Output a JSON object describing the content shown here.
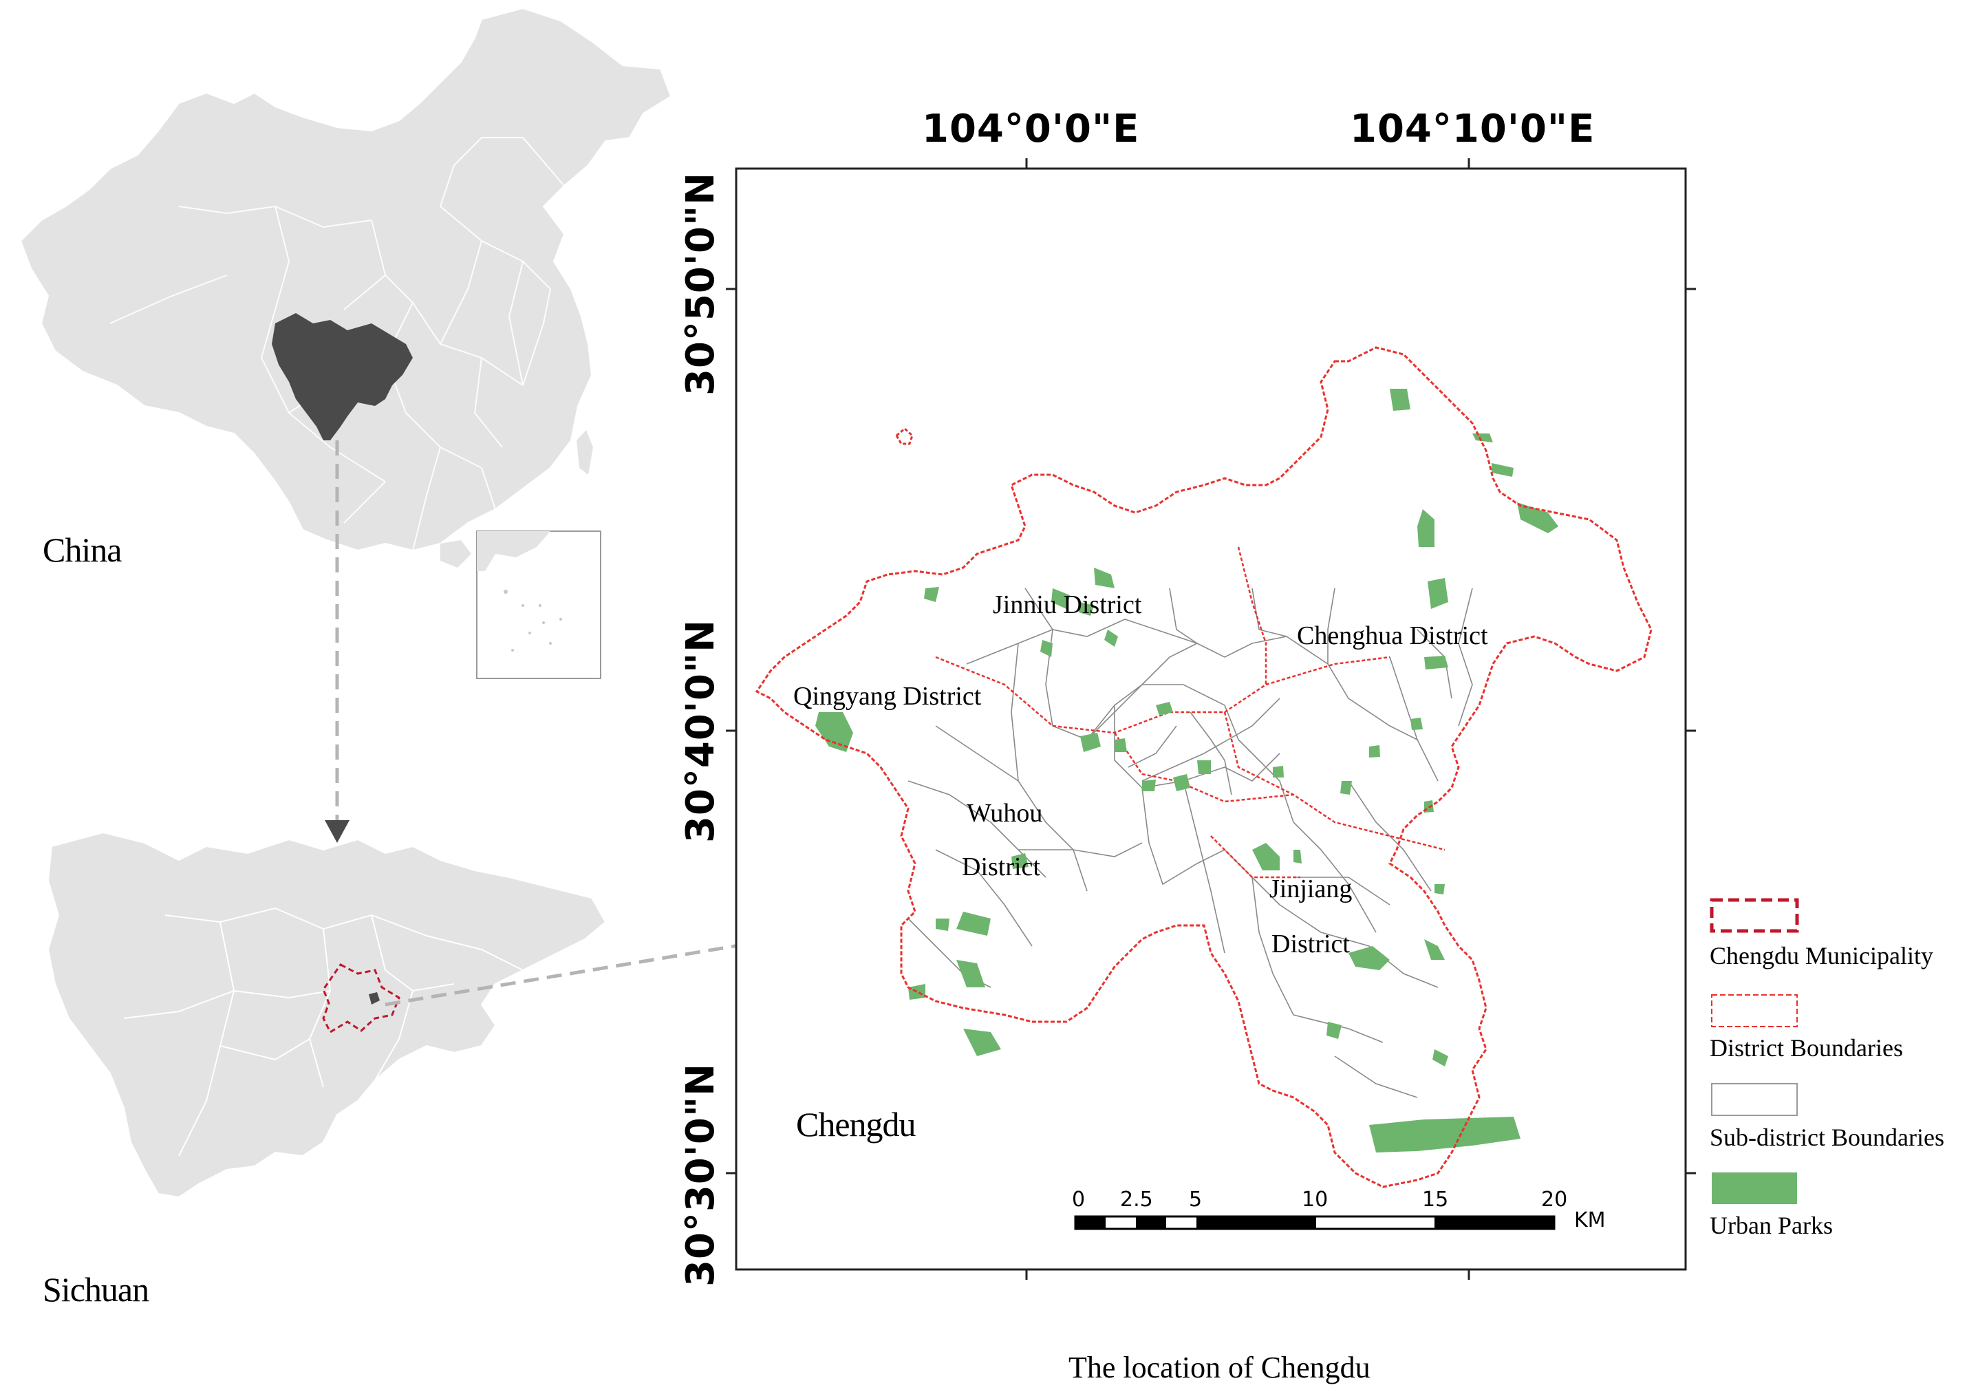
{
  "panels": {
    "china_label": "China",
    "sichuan_label": "Sichuan",
    "city_label": "Chengdu"
  },
  "map": {
    "longitude_labels": [
      "104°0'0\"E",
      "104°10'0\"E"
    ],
    "latitude_labels": [
      "30°50'0\"N",
      "30°40'0\"N",
      "30°30'0\"N"
    ],
    "districts": {
      "jinniu": "Jinniu District",
      "chenghua": "Chenghua District",
      "qingyang": "Qingyang District",
      "wuhou_line1": "Wuhou",
      "wuhou_line2": "District",
      "jinjiang_line1": "Jinjiang",
      "jinjiang_line2": "District"
    }
  },
  "scale_bar": {
    "ticks": [
      "0",
      "2.5",
      "5",
      "10",
      "15",
      "20"
    ],
    "unit": "KM"
  },
  "legend": {
    "items": [
      {
        "label": "Chengdu Municipality",
        "style": "dashed-bold",
        "color": "#c0172b"
      },
      {
        "label": "District Boundaries",
        "style": "dashed-thin",
        "color": "#e8322e"
      },
      {
        "label": "Sub-district Boundaries",
        "style": "solid-gray",
        "color": "#9a9a9a"
      },
      {
        "label": "Urban Parks",
        "style": "fill",
        "color": "#6db56d"
      }
    ]
  },
  "caption": "The location of Chengdu",
  "colors": {
    "land": "#e3e3e3",
    "sichuan_highlight": "#4a4a4a",
    "park_green": "#6db56d",
    "district_red": "#e8322e",
    "municipality_red": "#c0172b",
    "arrow_gray": "#b4b4b4"
  }
}
